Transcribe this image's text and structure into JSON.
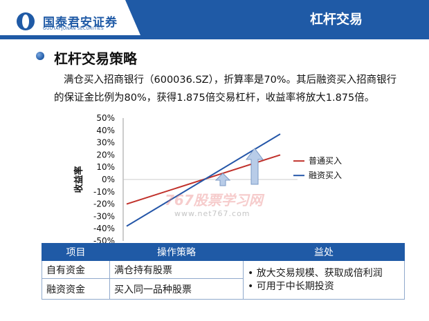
{
  "header": {
    "brand_cn": "国泰君安证券",
    "brand_en": "GUOTAI JUNAN SECURITIES",
    "page_title": "杠杆交易",
    "brand_color": "#1f5aa6"
  },
  "section": {
    "heading": "杠杆交易策略",
    "paragraph_line1": "满仓买入招商银行（600036.SZ），折算率是70%。其后融资买入招商银行",
    "paragraph_line2": "的保证金比例为80%，获得1.875倍交易杠杆，收益率将放大1.875倍。"
  },
  "watermark": {
    "main": "767股票学习网",
    "sub": "www.net767.com"
  },
  "chart_data": {
    "type": "line",
    "ylabel": "收益率",
    "yticks": [
      "50%",
      "40%",
      "30%",
      "20%",
      "10%",
      "0%",
      "-10%",
      "-20%",
      "-30%",
      "-40%",
      "-50%"
    ],
    "ylim": [
      -50,
      50
    ],
    "x": [
      0,
      1
    ],
    "series": [
      {
        "name": "普通买入",
        "color": "#c0302a",
        "values": [
          -20,
          20
        ]
      },
      {
        "name": "融资买入",
        "color": "#2456a8",
        "values": [
          -38,
          37
        ]
      }
    ],
    "legend_position": "right",
    "annotations": [
      "up-arrow-small",
      "up-arrow-large"
    ]
  },
  "table": {
    "headers": [
      "项目",
      "操作策略",
      "益处"
    ],
    "rows": [
      {
        "item": "自有资金",
        "strategy": "满仓持有股票"
      },
      {
        "item": "融资资金",
        "strategy": "买入同一品种股票"
      }
    ],
    "benefits": [
      "• 放大交易规模、获取成倍利润",
      "• 可用于中长期投资"
    ]
  }
}
